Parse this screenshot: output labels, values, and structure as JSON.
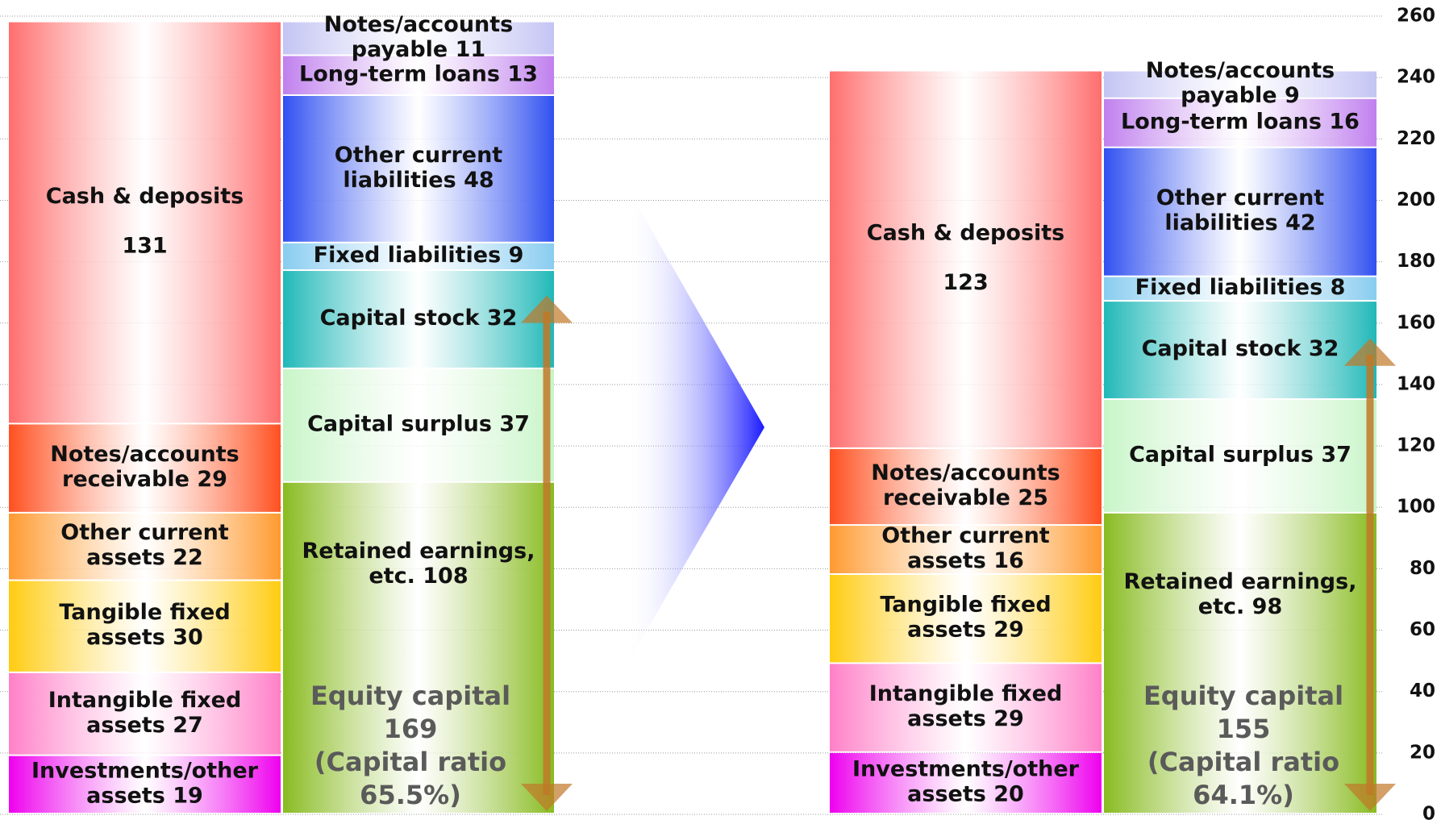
{
  "chart_data": {
    "type": "balance_sheet",
    "ylim": [
      0,
      260
    ],
    "yticks": [
      0,
      20,
      40,
      60,
      80,
      100,
      120,
      140,
      160,
      180,
      200,
      220,
      240,
      260
    ],
    "grid": true,
    "periods": [
      {
        "assets": [
          {
            "name": [
              "Investments/other",
              "assets"
            ],
            "value": 19,
            "color": "#ee00ee"
          },
          {
            "name": [
              "Intangible fixed",
              "assets"
            ],
            "value": 27,
            "color": "#ff80c8"
          },
          {
            "name": [
              "Tangible fixed",
              "assets"
            ],
            "value": 30,
            "color": "#ffcc10"
          },
          {
            "name": [
              "Other current",
              "assets"
            ],
            "value": 22,
            "color": "#ff9a30"
          },
          {
            "name": [
              "Notes/accounts",
              "receivable"
            ],
            "value": 29,
            "color": "#ff5020"
          },
          {
            "name": [
              "Cash & deposits"
            ],
            "value": 131,
            "color": "#ff6e6e"
          }
        ],
        "liabilities": [
          {
            "name": [
              "Retained earnings,",
              "etc."
            ],
            "value": 108,
            "color": "#88bb20"
          },
          {
            "name": [
              "Capital surplus"
            ],
            "value": 37,
            "color": "#c8f5c8"
          },
          {
            "name": [
              "Capital stock"
            ],
            "value": 32,
            "color": "#20b8b8"
          },
          {
            "name": [
              "Fixed liabilities"
            ],
            "value": 9,
            "color": "#88ccf0"
          },
          {
            "name": [
              "Other current",
              "liabilities"
            ],
            "value": 48,
            "color": "#3050f0"
          },
          {
            "name": [
              "Long-term loans"
            ],
            "value": 13,
            "color": "#c080ee"
          },
          {
            "name": [
              "Notes/accounts",
              "payable"
            ],
            "value": 11,
            "color": "#c4c4f4"
          }
        ],
        "equity": {
          "name": "Equity capital",
          "value": 169,
          "note": [
            "(Capital ratio",
            "65.5%)"
          ]
        }
      },
      {
        "assets": [
          {
            "name": [
              "Investments/other",
              "assets"
            ],
            "value": 20,
            "color": "#ee00ee"
          },
          {
            "name": [
              "Intangible fixed",
              "assets"
            ],
            "value": 29,
            "color": "#ff80c8"
          },
          {
            "name": [
              "Tangible fixed",
              "assets"
            ],
            "value": 29,
            "color": "#ffcc10"
          },
          {
            "name": [
              "Other current",
              "assets"
            ],
            "value": 16,
            "color": "#ff9a30"
          },
          {
            "name": [
              "Notes/accounts",
              "receivable"
            ],
            "value": 25,
            "color": "#ff5020"
          },
          {
            "name": [
              "Cash & deposits"
            ],
            "value": 123,
            "color": "#ff6e6e"
          }
        ],
        "liabilities": [
          {
            "name": [
              "Retained earnings,",
              "etc."
            ],
            "value": 98,
            "color": "#88bb20"
          },
          {
            "name": [
              "Capital surplus"
            ],
            "value": 37,
            "color": "#c8f5c8"
          },
          {
            "name": [
              "Capital stock"
            ],
            "value": 32,
            "color": "#20b8b8"
          },
          {
            "name": [
              "Fixed liabilities"
            ],
            "value": 8,
            "color": "#88ccf0"
          },
          {
            "name": [
              "Other current",
              "liabilities"
            ],
            "value": 42,
            "color": "#3050f0"
          },
          {
            "name": [
              "Long-term loans"
            ],
            "value": 16,
            "color": "#c080ee"
          },
          {
            "name": [
              "Notes/accounts",
              "payable"
            ],
            "value": 9,
            "color": "#c4c4f4"
          }
        ],
        "equity": {
          "name": "Equity capital",
          "value": 155,
          "note": [
            "(Capital ratio",
            "64.1%)"
          ]
        }
      }
    ]
  }
}
